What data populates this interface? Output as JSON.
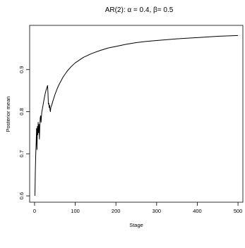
{
  "chart_data": {
    "type": "line",
    "title": "AR(2): α = 0.4, β= 0.5",
    "xlabel": "Stage",
    "ylabel": "Posterior mean",
    "xlim": [
      -12,
      512
    ],
    "ylim": [
      0.585,
      1.005
    ],
    "x_ticks": [
      0,
      100,
      200,
      300,
      400,
      500
    ],
    "x_tick_labels": [
      "0",
      "100",
      "200",
      "300",
      "400",
      "500"
    ],
    "y_ticks": [
      0.6,
      0.7,
      0.8,
      0.9
    ],
    "y_tick_labels": [
      "0.6",
      "0.7",
      "0.8",
      "0.9"
    ],
    "grid": false,
    "legend": "none",
    "series": [
      {
        "color": "#000000",
        "x": [
          1,
          2,
          3,
          4,
          5,
          6,
          7,
          8,
          9,
          10,
          11,
          12,
          13,
          14,
          15,
          16,
          17,
          18,
          20,
          22,
          24,
          26,
          28,
          30,
          32,
          33,
          34,
          35,
          36,
          37,
          38,
          39,
          40,
          42,
          45,
          50,
          55,
          60,
          70,
          80,
          90,
          100,
          120,
          140,
          160,
          180,
          200,
          225,
          250,
          275,
          300,
          350,
          400,
          450,
          500
        ],
        "y": [
          0.6,
          0.66,
          0.7,
          0.725,
          0.76,
          0.71,
          0.765,
          0.745,
          0.775,
          0.75,
          0.77,
          0.735,
          0.765,
          0.785,
          0.79,
          0.775,
          0.79,
          0.8,
          0.81,
          0.822,
          0.832,
          0.842,
          0.85,
          0.856,
          0.862,
          0.845,
          0.818,
          0.82,
          0.81,
          0.815,
          0.805,
          0.8,
          0.81,
          0.815,
          0.825,
          0.84,
          0.853,
          0.864,
          0.882,
          0.896,
          0.907,
          0.916,
          0.929,
          0.938,
          0.945,
          0.951,
          0.955,
          0.96,
          0.964,
          0.967,
          0.969,
          0.973,
          0.976,
          0.979,
          0.981
        ]
      }
    ]
  }
}
